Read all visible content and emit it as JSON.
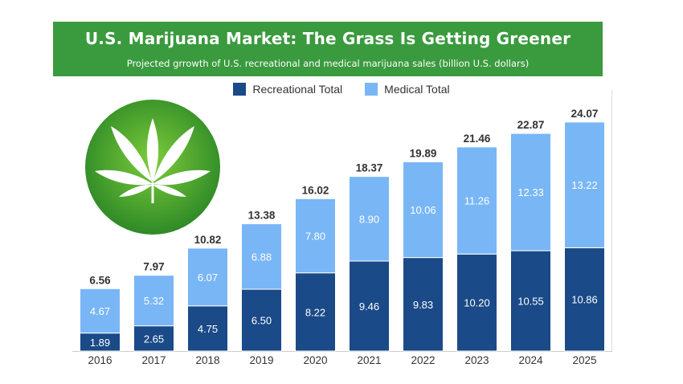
{
  "header": {
    "title": "U.S. Marijuana Market: The Grass Is Getting Greener",
    "subtitle": "Projected grrowth of U.S. recreational and medical marijuana sales (billion U.S. dollars)"
  },
  "colors": {
    "header_bg": "#3a9a3e",
    "recreational": "#1a4a87",
    "medical": "#79b6f6",
    "logo_green": "#3f9c2f"
  },
  "logo": {
    "icon": "cannabis-leaf-icon"
  },
  "chart_data": {
    "type": "bar",
    "stacked": true,
    "categories": [
      "2016",
      "2017",
      "2018",
      "2019",
      "2020",
      "2021",
      "2022",
      "2023",
      "2024",
      "2025"
    ],
    "series": [
      {
        "name": "Recreational Total",
        "values": [
          1.89,
          2.65,
          4.75,
          6.5,
          8.22,
          9.46,
          9.83,
          10.2,
          10.55,
          10.86
        ]
      },
      {
        "name": "Medical Total",
        "values": [
          4.67,
          5.32,
          6.07,
          6.88,
          7.8,
          8.9,
          10.06,
          11.26,
          12.33,
          13.22
        ]
      }
    ],
    "totals": [
      6.56,
      7.97,
      10.82,
      13.38,
      16.02,
      18.37,
      19.89,
      21.46,
      22.87,
      24.07
    ],
    "ylim": [
      0,
      24.07
    ],
    "grid": false,
    "legend_position": "top-center"
  }
}
